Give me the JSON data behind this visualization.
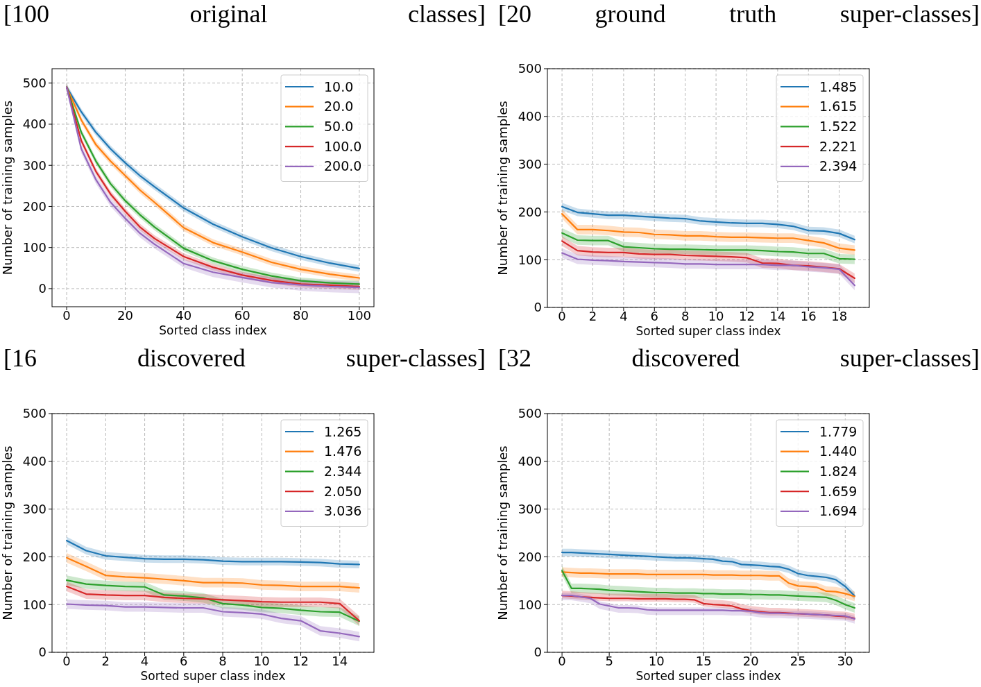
{
  "chart_data": [
    {
      "type": "line",
      "title": "[100 original classes]",
      "xlabel": "Sorted class index",
      "ylabel": "Number of training samples",
      "xlim": [
        -5,
        105
      ],
      "ylim": [
        -44,
        535
      ],
      "xticks": [
        0,
        20,
        40,
        60,
        80,
        100
      ],
      "yticks": [
        0,
        100,
        200,
        300,
        400,
        500
      ],
      "grid": true,
      "legend": "top right",
      "series": [
        {
          "name": "10.0",
          "color": "#1f77b4",
          "x": [
            0,
            5,
            10,
            15,
            20,
            25,
            30,
            40,
            50,
            60,
            70,
            80,
            90,
            100
          ],
          "values": [
            490,
            430,
            380,
            340,
            306,
            275,
            248,
            196,
            157,
            126,
            99,
            78,
            62,
            49
          ],
          "lower": [
            482,
            422,
            372,
            332,
            298,
            267,
            240,
            188,
            149,
            118,
            91,
            70,
            54,
            41
          ],
          "upper": [
            498,
            438,
            388,
            348,
            314,
            283,
            256,
            204,
            165,
            134,
            107,
            86,
            70,
            57
          ]
        },
        {
          "name": "20.0",
          "color": "#ff7f0e",
          "x": [
            0,
            5,
            10,
            15,
            20,
            25,
            30,
            40,
            50,
            60,
            70,
            80,
            90,
            100
          ],
          "values": [
            490,
            410,
            350,
            310,
            275,
            240,
            210,
            148,
            112,
            89,
            64,
            47,
            35,
            26
          ],
          "lower": [
            482,
            402,
            342,
            302,
            267,
            232,
            202,
            140,
            104,
            81,
            56,
            39,
            27,
            18
          ],
          "upper": [
            498,
            418,
            358,
            318,
            283,
            248,
            218,
            156,
            120,
            97,
            72,
            55,
            43,
            34
          ]
        },
        {
          "name": "50.0",
          "color": "#2ca02c",
          "x": [
            0,
            5,
            10,
            15,
            20,
            25,
            30,
            40,
            50,
            60,
            70,
            80,
            90,
            100
          ],
          "values": [
            490,
            380,
            310,
            255,
            214,
            180,
            150,
            98,
            68,
            47,
            31,
            19,
            14,
            11
          ],
          "lower": [
            482,
            372,
            302,
            247,
            206,
            172,
            142,
            90,
            60,
            39,
            23,
            11,
            6,
            3
          ],
          "upper": [
            498,
            388,
            318,
            263,
            222,
            188,
            158,
            106,
            76,
            55,
            39,
            27,
            22,
            19
          ]
        },
        {
          "name": "100.0",
          "color": "#d62728",
          "x": [
            0,
            5,
            10,
            15,
            20,
            25,
            30,
            40,
            50,
            60,
            70,
            80,
            90,
            100
          ],
          "values": [
            490,
            360,
            285,
            230,
            188,
            150,
            122,
            78,
            52,
            33,
            20,
            11,
            8,
            5
          ],
          "lower": [
            482,
            352,
            277,
            222,
            180,
            142,
            114,
            70,
            44,
            25,
            12,
            3,
            0,
            -3
          ],
          "upper": [
            498,
            368,
            293,
            238,
            196,
            158,
            130,
            86,
            60,
            41,
            28,
            19,
            16,
            13
          ]
        },
        {
          "name": "200.0",
          "color": "#9467bd",
          "x": [
            0,
            5,
            10,
            15,
            20,
            25,
            30,
            40,
            50,
            60,
            70,
            80,
            90,
            100
          ],
          "values": [
            490,
            340,
            265,
            210,
            171,
            135,
            108,
            61,
            40,
            27,
            15,
            9,
            5,
            3
          ],
          "lower": [
            480,
            330,
            255,
            200,
            161,
            125,
            98,
            51,
            28,
            15,
            3,
            -5,
            -9,
            -11
          ],
          "upper": [
            500,
            350,
            275,
            220,
            181,
            145,
            118,
            71,
            52,
            39,
            27,
            23,
            19,
            17
          ]
        }
      ]
    },
    {
      "type": "line",
      "title": "[20 ground truth super-classes]",
      "xlabel": "Sorted super class index",
      "ylabel": "Number of training samples",
      "xlim": [
        -0.95,
        19.95
      ],
      "ylim": [
        0,
        500
      ],
      "xticks": [
        0,
        2,
        4,
        6,
        8,
        10,
        12,
        14,
        16,
        18
      ],
      "yticks": [
        0,
        100,
        200,
        300,
        400,
        500
      ],
      "grid": true,
      "legend": "top right",
      "series": [
        {
          "name": "1.485",
          "color": "#1f77b4",
          "x": [
            0,
            1,
            2,
            3,
            4,
            5,
            6,
            7,
            8,
            9,
            10,
            11,
            12,
            13,
            14,
            15,
            16,
            17,
            18,
            19
          ],
          "values": [
            211,
            199,
            196,
            193,
            193,
            191,
            189,
            187,
            186,
            181,
            179,
            177,
            176,
            176,
            174,
            170,
            161,
            160,
            155,
            142
          ],
          "lower": [
            203,
            191,
            188,
            185,
            185,
            183,
            181,
            179,
            178,
            173,
            171,
            169,
            168,
            168,
            166,
            162,
            153,
            152,
            147,
            134
          ],
          "upper": [
            219,
            207,
            204,
            201,
            201,
            199,
            197,
            195,
            194,
            189,
            187,
            185,
            184,
            184,
            182,
            178,
            169,
            168,
            163,
            150
          ]
        },
        {
          "name": "1.615",
          "color": "#ff7f0e",
          "x": [
            0,
            1,
            2,
            3,
            4,
            5,
            6,
            7,
            8,
            9,
            10,
            11,
            12,
            13,
            14,
            15,
            16,
            17,
            18,
            19
          ],
          "values": [
            196,
            163,
            163,
            161,
            158,
            157,
            153,
            152,
            150,
            150,
            148,
            147,
            147,
            146,
            145,
            145,
            140,
            135,
            124,
            120
          ],
          "lower": [
            186,
            153,
            153,
            151,
            148,
            147,
            143,
            142,
            140,
            140,
            138,
            137,
            137,
            136,
            135,
            135,
            130,
            125,
            114,
            110
          ],
          "upper": [
            206,
            173,
            173,
            171,
            168,
            167,
            163,
            162,
            160,
            160,
            158,
            157,
            157,
            156,
            155,
            155,
            150,
            145,
            134,
            130
          ]
        },
        {
          "name": "1.522",
          "color": "#2ca02c",
          "x": [
            0,
            1,
            2,
            3,
            4,
            5,
            6,
            7,
            8,
            9,
            10,
            11,
            12,
            13,
            14,
            15,
            16,
            17,
            18,
            19
          ],
          "values": [
            156,
            141,
            140,
            140,
            127,
            125,
            123,
            122,
            122,
            121,
            120,
            120,
            120,
            119,
            117,
            116,
            113,
            113,
            102,
            101
          ],
          "lower": [
            146,
            131,
            130,
            130,
            117,
            115,
            113,
            112,
            112,
            111,
            110,
            110,
            110,
            109,
            107,
            106,
            103,
            103,
            92,
            91
          ],
          "upper": [
            166,
            151,
            150,
            150,
            137,
            135,
            133,
            132,
            132,
            131,
            130,
            130,
            130,
            129,
            127,
            126,
            123,
            123,
            112,
            111
          ]
        },
        {
          "name": "2.221",
          "color": "#d62728",
          "x": [
            0,
            1,
            2,
            3,
            4,
            5,
            6,
            7,
            8,
            9,
            10,
            11,
            12,
            13,
            14,
            15,
            16,
            17,
            18,
            19
          ],
          "values": [
            139,
            119,
            116,
            115,
            115,
            112,
            111,
            111,
            109,
            108,
            107,
            106,
            104,
            93,
            92,
            88,
            87,
            84,
            81,
            61
          ],
          "lower": [
            129,
            109,
            106,
            105,
            105,
            102,
            101,
            101,
            99,
            98,
            97,
            96,
            94,
            83,
            82,
            78,
            77,
            74,
            71,
            51
          ],
          "upper": [
            149,
            129,
            126,
            125,
            125,
            122,
            121,
            121,
            119,
            118,
            117,
            116,
            114,
            103,
            102,
            98,
            97,
            94,
            91,
            71
          ]
        },
        {
          "name": "2.394",
          "color": "#9467bd",
          "x": [
            0,
            1,
            2,
            3,
            4,
            5,
            6,
            7,
            8,
            9,
            10,
            11,
            12,
            13,
            14,
            15,
            16,
            17,
            18,
            19
          ],
          "values": [
            114,
            101,
            99,
            98,
            96,
            95,
            94,
            93,
            91,
            91,
            90,
            90,
            90,
            90,
            88,
            88,
            85,
            83,
            80,
            46
          ],
          "lower": [
            104,
            91,
            89,
            88,
            86,
            85,
            84,
            83,
            81,
            81,
            80,
            80,
            80,
            80,
            78,
            78,
            75,
            73,
            70,
            36
          ],
          "upper": [
            124,
            111,
            109,
            108,
            106,
            105,
            104,
            103,
            101,
            101,
            100,
            100,
            100,
            100,
            98,
            98,
            95,
            93,
            90,
            56
          ]
        }
      ]
    },
    {
      "type": "line",
      "title": "[16 discovered super-classes]",
      "xlabel": "Sorted super class index",
      "ylabel": "Number of training samples",
      "xlim": [
        -0.75,
        15.75
      ],
      "ylim": [
        0,
        500
      ],
      "xticks": [
        0,
        2,
        4,
        6,
        8,
        10,
        12,
        14
      ],
      "yticks": [
        0,
        100,
        200,
        300,
        400,
        500
      ],
      "grid": true,
      "legend": "top right",
      "series": [
        {
          "name": "1.265",
          "color": "#1f77b4",
          "x": [
            0,
            1,
            2,
            3,
            4,
            5,
            6,
            7,
            8,
            9,
            10,
            11,
            12,
            13,
            14,
            15
          ],
          "values": [
            234,
            213,
            202,
            199,
            196,
            195,
            195,
            194,
            191,
            190,
            190,
            190,
            189,
            188,
            185,
            184
          ],
          "lower": [
            226,
            205,
            194,
            191,
            188,
            187,
            187,
            186,
            183,
            182,
            182,
            182,
            181,
            180,
            177,
            176
          ],
          "upper": [
            242,
            221,
            210,
            207,
            204,
            203,
            203,
            202,
            199,
            198,
            198,
            198,
            197,
            196,
            193,
            192
          ]
        },
        {
          "name": "1.476",
          "color": "#ff7f0e",
          "x": [
            0,
            1,
            2,
            3,
            4,
            5,
            6,
            7,
            8,
            9,
            10,
            11,
            12,
            13,
            14,
            15
          ],
          "values": [
            198,
            180,
            161,
            158,
            156,
            153,
            150,
            146,
            146,
            145,
            141,
            140,
            138,
            138,
            138,
            135
          ],
          "lower": [
            188,
            170,
            151,
            148,
            146,
            143,
            140,
            136,
            136,
            135,
            131,
            130,
            128,
            128,
            128,
            125
          ],
          "upper": [
            208,
            190,
            171,
            168,
            166,
            163,
            160,
            156,
            156,
            155,
            151,
            150,
            148,
            148,
            148,
            145
          ]
        },
        {
          "name": "2.344",
          "color": "#2ca02c",
          "x": [
            0,
            1,
            2,
            3,
            4,
            5,
            6,
            7,
            8,
            9,
            10,
            11,
            12,
            13,
            14,
            15
          ],
          "values": [
            151,
            143,
            140,
            138,
            137,
            120,
            118,
            114,
            102,
            99,
            94,
            92,
            88,
            85,
            84,
            65
          ],
          "lower": [
            141,
            133,
            130,
            128,
            127,
            110,
            108,
            104,
            92,
            89,
            84,
            82,
            78,
            75,
            74,
            55
          ],
          "upper": [
            161,
            153,
            150,
            148,
            147,
            130,
            128,
            124,
            112,
            109,
            104,
            102,
            98,
            95,
            94,
            75
          ]
        },
        {
          "name": "2.050",
          "color": "#d62728",
          "x": [
            0,
            1,
            2,
            3,
            4,
            5,
            6,
            7,
            8,
            9,
            10,
            11,
            12,
            13,
            14,
            15
          ],
          "values": [
            138,
            122,
            120,
            119,
            119,
            115,
            113,
            112,
            110,
            108,
            106,
            105,
            105,
            105,
            102,
            66
          ],
          "lower": [
            128,
            112,
            110,
            109,
            109,
            105,
            103,
            102,
            100,
            98,
            96,
            95,
            95,
            95,
            92,
            56
          ],
          "upper": [
            148,
            132,
            130,
            129,
            129,
            125,
            123,
            122,
            120,
            118,
            116,
            115,
            115,
            115,
            112,
            76
          ]
        },
        {
          "name": "3.036",
          "color": "#9467bd",
          "x": [
            0,
            1,
            2,
            3,
            4,
            5,
            6,
            7,
            8,
            9,
            10,
            11,
            12,
            13,
            14,
            15
          ],
          "values": [
            101,
            99,
            98,
            95,
            95,
            94,
            93,
            93,
            85,
            83,
            80,
            71,
            66,
            45,
            40,
            33
          ],
          "lower": [
            91,
            89,
            88,
            85,
            85,
            84,
            83,
            83,
            75,
            73,
            70,
            61,
            56,
            35,
            30,
            23
          ],
          "upper": [
            111,
            109,
            108,
            105,
            105,
            104,
            103,
            103,
            95,
            93,
            90,
            81,
            76,
            55,
            50,
            43
          ]
        }
      ]
    },
    {
      "type": "line",
      "title": "[32 discovered super-classes]",
      "xlabel": "Sorted super class index",
      "ylabel": "Number of training samples",
      "xlim": [
        -1.55,
        32.55
      ],
      "ylim": [
        0,
        500
      ],
      "xticks": [
        0,
        5,
        10,
        15,
        20,
        25,
        30
      ],
      "yticks": [
        0,
        100,
        200,
        300,
        400,
        500
      ],
      "grid": true,
      "legend": "top right",
      "series": [
        {
          "name": "1.779",
          "color": "#1f77b4",
          "x": [
            0,
            1,
            2,
            3,
            4,
            5,
            6,
            7,
            8,
            9,
            10,
            11,
            12,
            13,
            14,
            15,
            16,
            17,
            18,
            19,
            20,
            21,
            22,
            23,
            24,
            25,
            26,
            27,
            28,
            29,
            30,
            31
          ],
          "values": [
            209,
            209,
            208,
            207,
            206,
            205,
            204,
            203,
            202,
            201,
            200,
            199,
            198,
            198,
            197,
            196,
            195,
            191,
            190,
            184,
            183,
            182,
            180,
            179,
            174,
            165,
            161,
            159,
            157,
            152,
            138,
            118
          ],
          "lower": [
            201,
            201,
            200,
            199,
            198,
            197,
            196,
            195,
            194,
            193,
            192,
            191,
            190,
            190,
            189,
            188,
            187,
            183,
            182,
            176,
            175,
            174,
            172,
            171,
            166,
            157,
            153,
            151,
            149,
            144,
            130,
            110
          ],
          "upper": [
            217,
            217,
            216,
            215,
            214,
            213,
            212,
            211,
            210,
            209,
            208,
            207,
            206,
            206,
            205,
            204,
            203,
            199,
            198,
            192,
            191,
            190,
            188,
            187,
            182,
            173,
            169,
            167,
            165,
            160,
            146,
            126
          ]
        },
        {
          "name": "1.440",
          "color": "#ff7f0e",
          "x": [
            0,
            1,
            2,
            3,
            4,
            5,
            6,
            7,
            8,
            9,
            10,
            11,
            12,
            13,
            14,
            15,
            16,
            17,
            18,
            19,
            20,
            21,
            22,
            23,
            24,
            25,
            26,
            27,
            28,
            29,
            30,
            31
          ],
          "values": [
            168,
            167,
            166,
            166,
            165,
            164,
            164,
            164,
            164,
            163,
            163,
            163,
            163,
            163,
            163,
            163,
            162,
            162,
            162,
            161,
            161,
            161,
            160,
            160,
            145,
            139,
            138,
            136,
            128,
            127,
            123,
            117
          ],
          "lower": [
            158,
            157,
            156,
            156,
            155,
            154,
            154,
            154,
            154,
            153,
            153,
            153,
            153,
            153,
            153,
            153,
            152,
            152,
            152,
            151,
            151,
            151,
            150,
            150,
            135,
            129,
            128,
            126,
            118,
            117,
            113,
            107
          ],
          "upper": [
            178,
            177,
            176,
            176,
            175,
            174,
            174,
            174,
            174,
            173,
            173,
            173,
            173,
            173,
            173,
            173,
            172,
            172,
            172,
            171,
            171,
            171,
            170,
            170,
            155,
            149,
            148,
            146,
            138,
            137,
            133,
            127
          ]
        },
        {
          "name": "1.824",
          "color": "#2ca02c",
          "x": [
            0,
            1,
            2,
            3,
            4,
            5,
            6,
            7,
            8,
            9,
            10,
            11,
            12,
            13,
            14,
            15,
            16,
            17,
            18,
            19,
            20,
            21,
            22,
            23,
            24,
            25,
            26,
            27,
            28,
            29,
            30,
            31
          ],
          "values": [
            171,
            134,
            134,
            133,
            132,
            130,
            129,
            128,
            127,
            126,
            125,
            125,
            124,
            124,
            124,
            123,
            123,
            122,
            122,
            122,
            121,
            121,
            120,
            120,
            119,
            118,
            117,
            116,
            115,
            109,
            100,
            93
          ],
          "lower": [
            161,
            124,
            124,
            123,
            122,
            120,
            119,
            118,
            117,
            116,
            115,
            115,
            114,
            114,
            114,
            113,
            113,
            112,
            112,
            112,
            111,
            111,
            110,
            110,
            109,
            108,
            107,
            106,
            105,
            99,
            90,
            83
          ],
          "upper": [
            181,
            144,
            144,
            143,
            142,
            140,
            139,
            138,
            137,
            136,
            135,
            135,
            134,
            134,
            134,
            133,
            133,
            132,
            132,
            132,
            131,
            131,
            130,
            130,
            129,
            128,
            127,
            126,
            125,
            119,
            110,
            103
          ]
        },
        {
          "name": "1.659",
          "color": "#d62728",
          "x": [
            0,
            1,
            2,
            3,
            4,
            5,
            6,
            7,
            8,
            9,
            10,
            11,
            12,
            13,
            14,
            15,
            16,
            17,
            18,
            19,
            20,
            21,
            22,
            23,
            24,
            25,
            26,
            27,
            28,
            29,
            30,
            31
          ],
          "values": [
            119,
            118,
            116,
            115,
            114,
            113,
            113,
            113,
            112,
            112,
            112,
            112,
            111,
            111,
            110,
            102,
            100,
            99,
            97,
            91,
            87,
            85,
            83,
            83,
            82,
            81,
            80,
            79,
            78,
            76,
            75,
            71
          ],
          "lower": [
            113,
            112,
            110,
            109,
            108,
            107,
            107,
            107,
            106,
            106,
            106,
            106,
            105,
            105,
            104,
            96,
            94,
            93,
            91,
            85,
            81,
            79,
            77,
            77,
            76,
            75,
            74,
            73,
            72,
            70,
            69,
            65
          ],
          "upper": [
            129,
            128,
            126,
            125,
            124,
            123,
            123,
            123,
            122,
            122,
            122,
            122,
            121,
            121,
            120,
            112,
            110,
            109,
            107,
            101,
            97,
            95,
            93,
            93,
            92,
            91,
            90,
            89,
            88,
            86,
            85,
            81
          ]
        },
        {
          "name": "1.694",
          "color": "#9467bd",
          "x": [
            0,
            1,
            2,
            3,
            4,
            5,
            6,
            7,
            8,
            9,
            10,
            11,
            12,
            13,
            14,
            15,
            16,
            17,
            18,
            19,
            20,
            21,
            22,
            23,
            24,
            25,
            26,
            27,
            28,
            29,
            30,
            31
          ],
          "values": [
            119,
            119,
            116,
            113,
            101,
            97,
            93,
            93,
            92,
            89,
            88,
            88,
            88,
            88,
            88,
            88,
            88,
            88,
            87,
            87,
            86,
            83,
            82,
            82,
            81,
            81,
            80,
            79,
            78,
            77,
            76,
            70
          ],
          "lower": [
            109,
            109,
            106,
            103,
            91,
            87,
            83,
            83,
            82,
            79,
            78,
            78,
            78,
            78,
            78,
            78,
            78,
            78,
            77,
            77,
            76,
            73,
            72,
            72,
            71,
            71,
            70,
            69,
            68,
            67,
            66,
            60
          ],
          "upper": [
            125,
            125,
            122,
            119,
            107,
            103,
            99,
            99,
            98,
            95,
            94,
            94,
            94,
            94,
            94,
            94,
            94,
            94,
            93,
            93,
            92,
            89,
            88,
            88,
            87,
            87,
            86,
            85,
            84,
            83,
            82,
            76
          ]
        }
      ]
    }
  ]
}
